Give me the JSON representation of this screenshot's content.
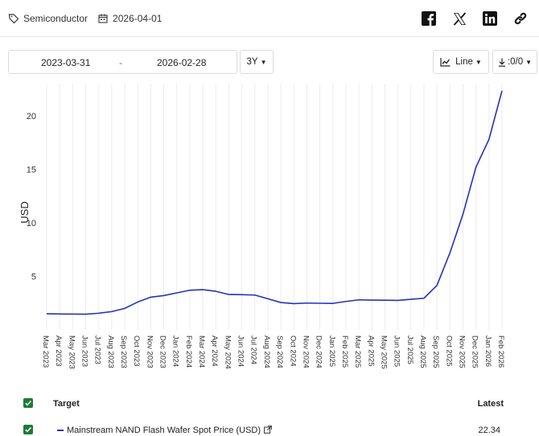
{
  "header": {
    "category": "Semiconductor",
    "date": "2026-04-01"
  },
  "controls": {
    "start_date": "2023-03-31",
    "separator": "-",
    "end_date": "2026-02-28",
    "range": "3Y",
    "chart_type": "Line",
    "download": ":0/0"
  },
  "legend": {
    "target_header": "Target",
    "latest_header": "Latest",
    "series_name": "Mainstream NAND Flash Wafer Spot Price (USD)",
    "series_latest": "22.34"
  },
  "colors": {
    "line": "#2233bb",
    "checkbox": "#1f7a36",
    "grid": "#ececec"
  },
  "chart_data": {
    "type": "line",
    "title": "",
    "xlabel": "",
    "ylabel": "USD",
    "ylim": [
      0,
      23
    ],
    "yticks": [
      5,
      10,
      15,
      20
    ],
    "grid": "vertical",
    "categories": [
      "Mar 2023",
      "Apr 2023",
      "May 2023",
      "Jun 2023",
      "Jul 2023",
      "Aug 2023",
      "Sep 2023",
      "Oct 2023",
      "Nov 2023",
      "Dec 2023",
      "Jan 2024",
      "Feb 2024",
      "Mar 2024",
      "Apr 2024",
      "May 2024",
      "Jun 2024",
      "Jul 2024",
      "Aug 2024",
      "Sep 2024",
      "Oct 2024",
      "Nov 2024",
      "Dec 2024",
      "Jan 2025",
      "Feb 2025",
      "Mar 2025",
      "Apr 2025",
      "May 2025",
      "Jun 2025",
      "Jul 2025",
      "Aug 2025",
      "Sep 2025",
      "Oct 2025",
      "Nov 2025",
      "Dec 2025",
      "Jan 2026",
      "Feb 2026"
    ],
    "series": [
      {
        "name": "Mainstream NAND Flash Wafer Spot Price (USD)",
        "values": [
          1.5,
          1.48,
          1.47,
          1.46,
          1.55,
          1.7,
          2.0,
          2.6,
          3.05,
          3.2,
          3.45,
          3.7,
          3.75,
          3.6,
          3.3,
          3.28,
          3.25,
          2.9,
          2.55,
          2.45,
          2.5,
          2.48,
          2.47,
          2.65,
          2.8,
          2.78,
          2.77,
          2.75,
          2.85,
          2.95,
          4.15,
          7.2,
          10.8,
          15.2,
          17.8,
          22.34
        ]
      }
    ]
  }
}
